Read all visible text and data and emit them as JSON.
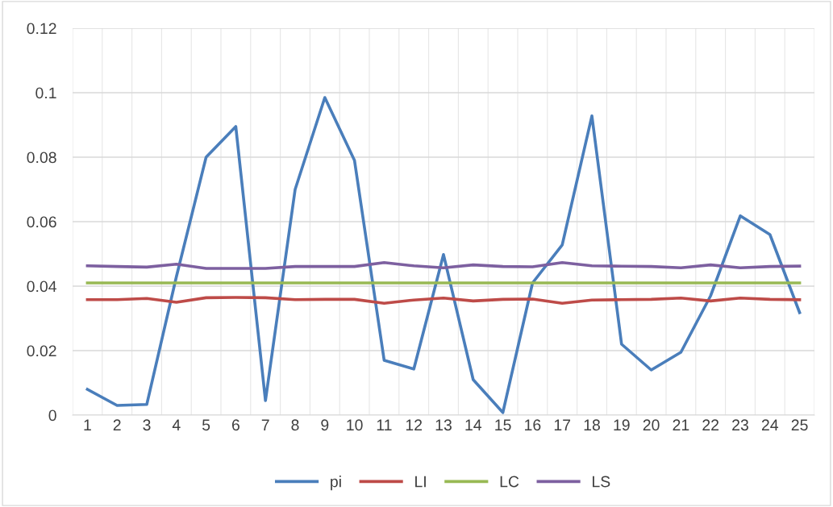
{
  "chart_data": {
    "type": "line",
    "categories": [
      "1",
      "2",
      "3",
      "4",
      "5",
      "6",
      "7",
      "8",
      "9",
      "10",
      "11",
      "12",
      "13",
      "14",
      "15",
      "16",
      "17",
      "18",
      "19",
      "20",
      "21",
      "22",
      "23",
      "24",
      "25"
    ],
    "series": [
      {
        "name": "pi",
        "color": "#4a7ebb",
        "values": [
          0.008,
          0.003,
          0.0033,
          0.043,
          0.08,
          0.0895,
          0.0045,
          0.07,
          0.0985,
          0.079,
          0.017,
          0.0143,
          0.0498,
          0.011,
          0.0008,
          0.041,
          0.0528,
          0.0928,
          0.022,
          0.014,
          0.0195,
          0.037,
          0.0618,
          0.056,
          0.0318
        ]
      },
      {
        "name": "LI",
        "color": "#be4b48",
        "values": [
          0.0358,
          0.0358,
          0.0362,
          0.035,
          0.0364,
          0.0365,
          0.0364,
          0.0358,
          0.0359,
          0.0359,
          0.0347,
          0.0357,
          0.0363,
          0.0354,
          0.0359,
          0.036,
          0.0347,
          0.0357,
          0.0358,
          0.0359,
          0.0363,
          0.0354,
          0.0363,
          0.0359,
          0.0358
        ]
      },
      {
        "name": "LC",
        "color": "#98b954",
        "values": [
          0.041,
          0.041,
          0.041,
          0.041,
          0.041,
          0.041,
          0.041,
          0.041,
          0.041,
          0.041,
          0.041,
          0.041,
          0.041,
          0.041,
          0.041,
          0.041,
          0.041,
          0.041,
          0.041,
          0.041,
          0.041,
          0.041,
          0.041,
          0.041,
          0.041
        ]
      },
      {
        "name": "LS",
        "color": "#7d60a0",
        "values": [
          0.0463,
          0.0461,
          0.0459,
          0.0468,
          0.0455,
          0.0455,
          0.0455,
          0.0461,
          0.0461,
          0.0461,
          0.0473,
          0.0463,
          0.0457,
          0.0466,
          0.0461,
          0.046,
          0.0473,
          0.0463,
          0.0462,
          0.0461,
          0.0457,
          0.0466,
          0.0457,
          0.0461,
          0.0462
        ]
      }
    ],
    "ylim": [
      0,
      0.12
    ],
    "yticks": [
      0,
      0.02,
      0.04,
      0.06,
      0.08,
      0.1,
      0.12
    ],
    "grid": true,
    "legend": "bottom",
    "marker": "none",
    "line_style": "solid"
  }
}
